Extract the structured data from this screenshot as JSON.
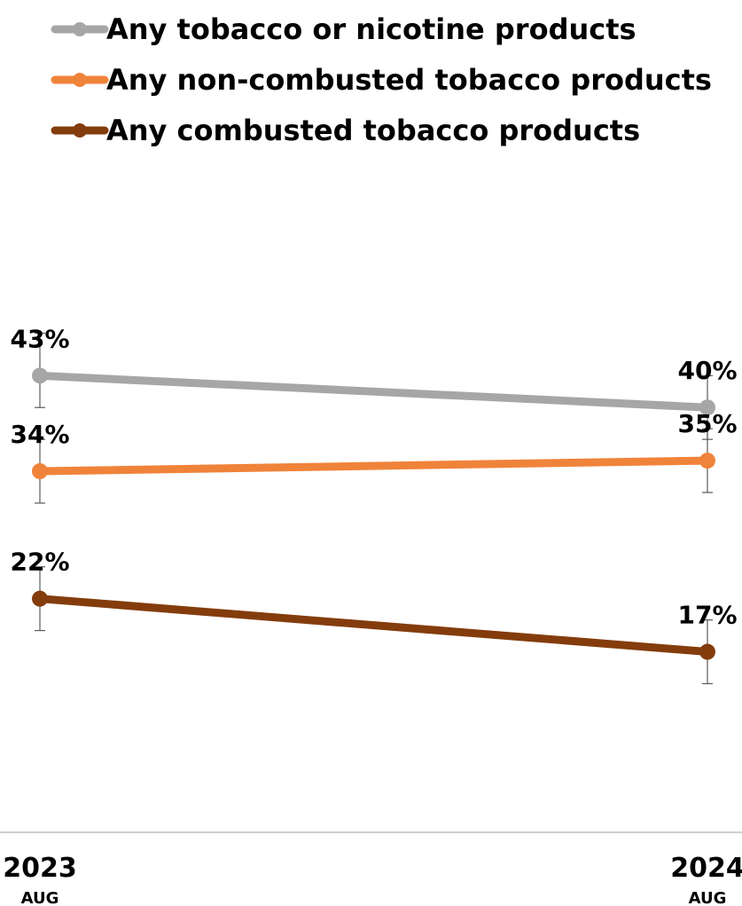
{
  "chart_data": {
    "type": "line",
    "categories": [
      {
        "year": "2023",
        "month": "AUG"
      },
      {
        "year": "2024",
        "month": "AUG"
      }
    ],
    "series": [
      {
        "name": "Any tobacco or nicotine products",
        "color": "#a6a6a6",
        "values": [
          43,
          40
        ],
        "labels": [
          "43%",
          "40%"
        ],
        "ci": [
          [
            40,
            47
          ],
          [
            37,
            43
          ]
        ]
      },
      {
        "name": "Any non-combusted tobacco products",
        "color": "#f0833a",
        "values": [
          34,
          35
        ],
        "labels": [
          "34%",
          "35%"
        ],
        "ci": [
          [
            31,
            37
          ],
          [
            32,
            38
          ]
        ]
      },
      {
        "name": "Any combusted tobacco products",
        "color": "#843c0c",
        "values": [
          22,
          17
        ],
        "labels": [
          "22%",
          "17%"
        ],
        "ci": [
          [
            19,
            25
          ],
          [
            14,
            20
          ]
        ]
      }
    ],
    "ylim": [
      0,
      65
    ],
    "grid": false,
    "legend_position": "top"
  }
}
